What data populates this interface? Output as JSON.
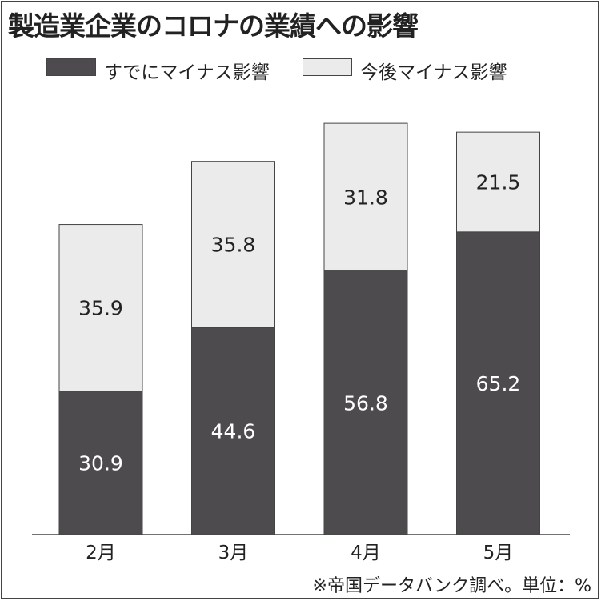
{
  "title": "製造業企業のコロナの業績への影響",
  "source": "※帝国データバンク調べ。単位：%",
  "colors": {
    "already": "#4e4b4e",
    "future": "#ebebeb",
    "border": "#444444",
    "already_label": "#ffffff",
    "future_label": "#222222"
  },
  "chart_data": {
    "type": "bar",
    "stacked": true,
    "categories": [
      "2月",
      "3月",
      "4月",
      "5月"
    ],
    "series": [
      {
        "name": "すでにマイナス影響",
        "values": [
          30.9,
          44.6,
          56.8,
          65.2
        ],
        "labels": [
          "30.9",
          "44.6",
          "56.8",
          "65.2"
        ]
      },
      {
        "name": "今後マイナス影響",
        "values": [
          35.9,
          35.8,
          31.8,
          21.5
        ],
        "labels": [
          "35.9",
          "35.8",
          "31.8",
          "21.5"
        ]
      }
    ],
    "ylim": [
      0,
      100
    ],
    "grid": false,
    "legend_position": "top-left",
    "unit": "%"
  }
}
